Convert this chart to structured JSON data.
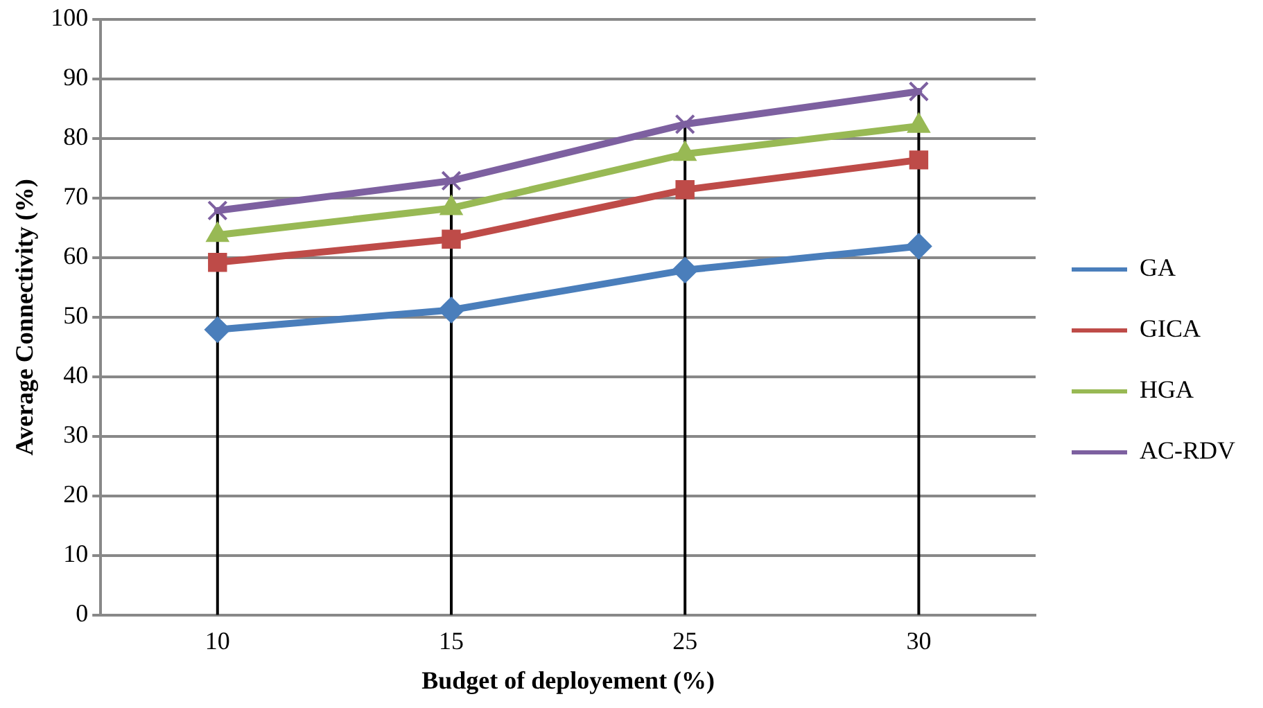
{
  "chart_data": {
    "type": "line",
    "xlabel": "Budget of deployement (%)",
    "ylabel": "Average Connectivity (%)",
    "categories": [
      "10",
      "15",
      "25",
      "30"
    ],
    "ylim": [
      0,
      100
    ],
    "yticks": [
      0,
      10,
      20,
      30,
      40,
      50,
      60,
      70,
      80,
      90,
      100
    ],
    "grid": "y",
    "legend": "right",
    "ref_lines": [
      {
        "axis": "x",
        "value": "10",
        "color": "#000000"
      },
      {
        "axis": "x",
        "value": "15",
        "color": "#000000"
      },
      {
        "axis": "x",
        "value": "25",
        "color": "#000000"
      },
      {
        "axis": "x",
        "value": "30",
        "color": "#000000"
      }
    ],
    "series": [
      {
        "name": "GA",
        "color": "#4a7ebb",
        "marker": "diamond",
        "values": [
          47.9,
          51.2,
          57.9,
          61.9
        ]
      },
      {
        "name": "GICA",
        "color": "#be4b48",
        "marker": "square",
        "values": [
          59.2,
          63.1,
          71.4,
          76.4
        ]
      },
      {
        "name": "HGA",
        "color": "#98b954",
        "marker": "triangle",
        "values": [
          63.8,
          68.3,
          77.4,
          82.1
        ]
      },
      {
        "name": "AC-RDV",
        "color": "#7d60a0",
        "marker": "cross",
        "values": [
          67.9,
          72.9,
          82.4,
          87.9
        ]
      }
    ]
  }
}
